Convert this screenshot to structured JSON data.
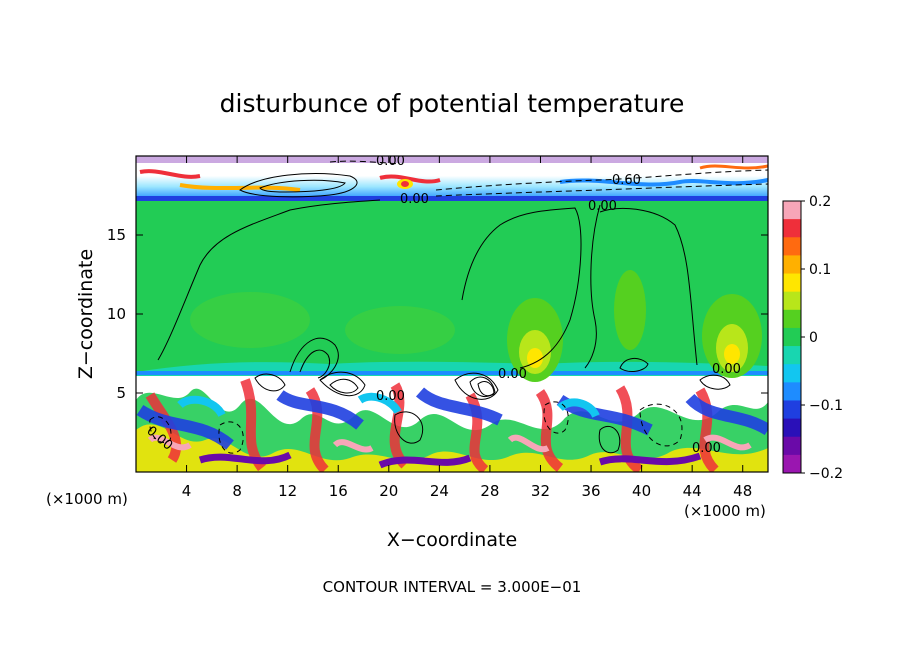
{
  "chart_data": {
    "type": "heatmap",
    "title": "disturbunce of potential temperature",
    "xlabel": "X−coordinate",
    "ylabel": "Z−coordinate",
    "x_unit_left": "(×1000 m)",
    "x_unit_right": "(×1000 m)",
    "xlim": [
      0,
      50
    ],
    "ylim": [
      0,
      20
    ],
    "x_ticks": [
      4,
      8,
      12,
      16,
      20,
      24,
      28,
      32,
      36,
      40,
      44,
      48
    ],
    "y_ticks": [
      5,
      10,
      15
    ],
    "colorbar": {
      "range": [
        -0.2,
        0.2
      ],
      "tick_labels": [
        "0.2",
        "0.1",
        "0",
        "−0.1",
        "−0.2"
      ],
      "colors": [
        "#f7a6b8",
        "#ef2f3a",
        "#ff6a10",
        "#ffb000",
        "#ffe600",
        "#b8e61a",
        "#55d020",
        "#22cc55",
        "#18d6b0",
        "#12c6f0",
        "#1e8cff",
        "#1f3fe0",
        "#2a10b8",
        "#6a0aa8",
        "#9a16b0"
      ]
    },
    "contour_labels": [
      "0.00",
      "0.00",
      "0.60",
      "0.00",
      "0.00",
      "0.00",
      "0.00",
      "0.00",
      "0.00"
    ],
    "footer": "CONTOUR INTERVAL = 3.000E−01"
  }
}
